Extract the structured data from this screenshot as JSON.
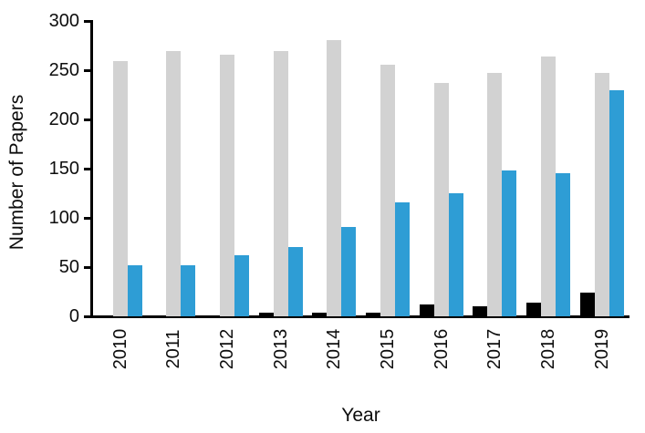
{
  "chart_data": {
    "type": "bar",
    "title": "",
    "xlabel": "Year",
    "ylabel": "Number of Papers",
    "categories": [
      "2010",
      "2011",
      "2012",
      "2013",
      "2014",
      "2015",
      "2016",
      "2017",
      "2018",
      "2019"
    ],
    "series": [
      {
        "name": "black-series",
        "color": "#000000",
        "values": [
          0,
          0,
          0,
          4,
          4,
          4,
          12,
          10,
          14,
          24
        ]
      },
      {
        "name": "gray-series",
        "color": "#d2d2d2",
        "values": [
          259,
          269,
          266,
          269,
          281,
          256,
          237,
          247,
          264,
          247
        ]
      },
      {
        "name": "blue-series",
        "color": "#2e9dd5",
        "values": [
          52,
          52,
          62,
          70,
          91,
          116,
          125,
          148,
          145,
          230
        ]
      }
    ],
    "ylim": [
      0,
      300
    ],
    "yticks": [
      0,
      50,
      100,
      150,
      200,
      250,
      300
    ],
    "grid": false,
    "legend": "none"
  },
  "colors": {
    "background": "#ffffff",
    "axis": "#000000",
    "text": "#0d0d0d"
  }
}
